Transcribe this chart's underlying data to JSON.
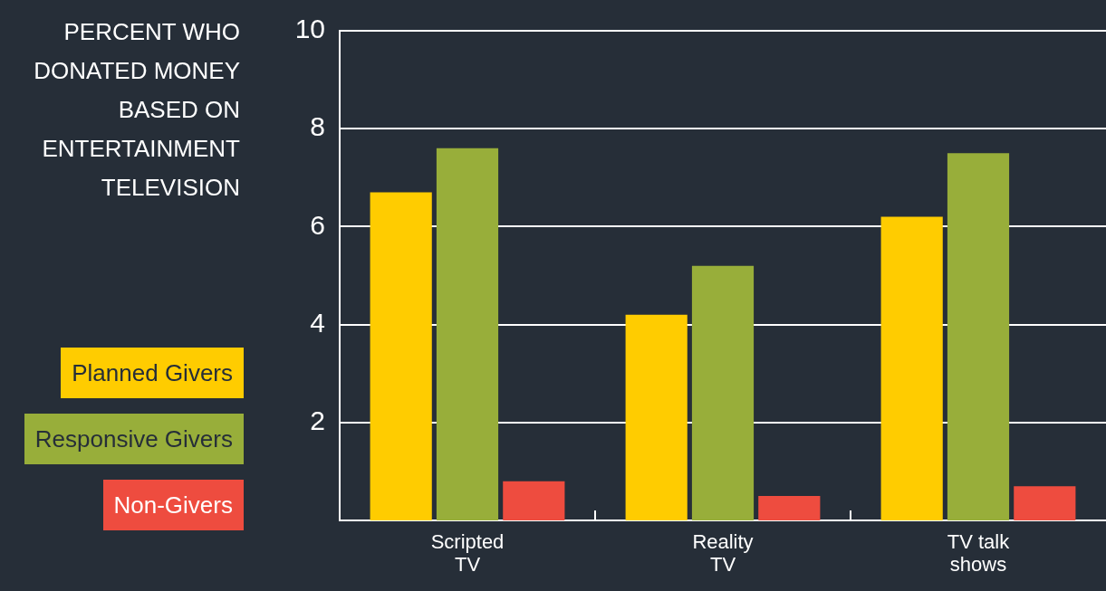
{
  "chart_data": {
    "type": "bar",
    "title": "PERCENT WHO DONATED MONEY BASED ON ENTERTAINMENT TELEVISION",
    "categories": [
      "Scripted TV",
      "Reality TV",
      "TV talk shows"
    ],
    "series": [
      {
        "name": "Planned Givers",
        "color": "#ffcc00",
        "values": [
          6.7,
          4.2,
          6.2
        ]
      },
      {
        "name": "Responsive Givers",
        "color": "#98ae3a",
        "values": [
          7.6,
          5.2,
          7.5
        ]
      },
      {
        "name": "Non-Givers",
        "color": "#ee4c3f",
        "values": [
          0.8,
          0.5,
          0.7
        ]
      }
    ],
    "ylim": [
      0,
      10
    ],
    "yticks": [
      2,
      4,
      6,
      8,
      10
    ],
    "grid": "y",
    "legend": "left"
  }
}
